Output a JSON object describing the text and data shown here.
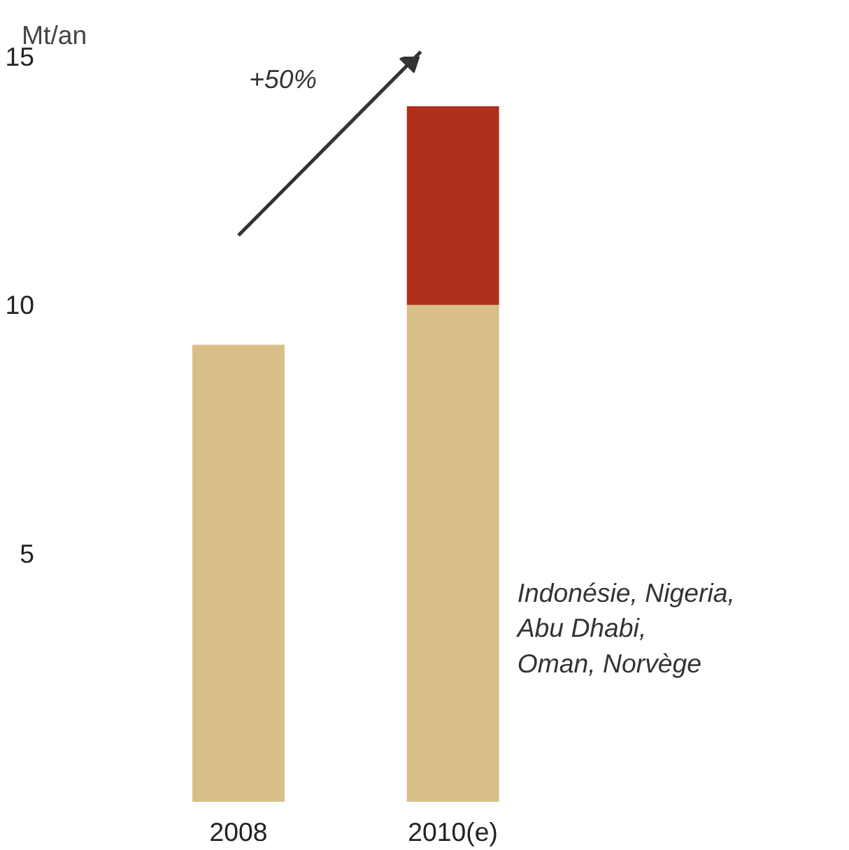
{
  "chart_data": {
    "type": "bar",
    "stacked": true,
    "ylabel": "Mt/an",
    "categories": [
      "2008",
      "2010(e)"
    ],
    "series": [
      {
        "name": "Indonésie, Nigeria,\nAbu Dhabi,\nOman, Norvège",
        "color": "#d8bf88",
        "values": [
          9.2,
          10.0
        ]
      },
      {
        "color": "#b0301c",
        "values": [
          null,
          4.0
        ]
      }
    ],
    "ylim": [
      0,
      15
    ],
    "yticks": [
      5,
      10,
      15
    ],
    "grid": false,
    "annotations": [
      "+50%"
    ]
  }
}
